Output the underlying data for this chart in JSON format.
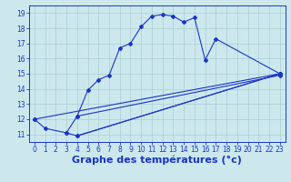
{
  "xlabel": "Graphe des températures (°c)",
  "ylabel": "",
  "xlim": [
    -0.5,
    23.5
  ],
  "ylim": [
    10.5,
    19.5
  ],
  "xticks": [
    0,
    1,
    2,
    3,
    4,
    5,
    6,
    7,
    8,
    9,
    10,
    11,
    12,
    13,
    14,
    15,
    16,
    17,
    18,
    19,
    20,
    21,
    22,
    23
  ],
  "yticks": [
    11,
    12,
    13,
    14,
    15,
    16,
    17,
    18,
    19
  ],
  "bg_color": "#cce8ed",
  "line_color": "#1a35c8",
  "grid_color": "#aacdd6",
  "line1_x": [
    0,
    1,
    3,
    4,
    5,
    6,
    7,
    8,
    9,
    10,
    11,
    12,
    13,
    14,
    15,
    16,
    17,
    23
  ],
  "line1_y": [
    12.0,
    11.4,
    11.1,
    12.2,
    13.9,
    14.6,
    14.9,
    16.7,
    17.0,
    18.1,
    18.8,
    18.9,
    18.8,
    18.4,
    18.7,
    15.9,
    17.3,
    15.0
  ],
  "line2_x": [
    3,
    4,
    23
  ],
  "line2_y": [
    11.1,
    10.9,
    15.0
  ],
  "line3_x": [
    0,
    23
  ],
  "line3_y": [
    12.0,
    15.0
  ],
  "line4_x": [
    4,
    23
  ],
  "line4_y": [
    12.2,
    14.9
  ],
  "line5_x": [
    4,
    23
  ],
  "line5_y": [
    10.9,
    15.0
  ],
  "fontsize_xlabel": 8,
  "tick_fontsize": 5.5,
  "marker_size": 2.0,
  "linewidth": 0.8
}
